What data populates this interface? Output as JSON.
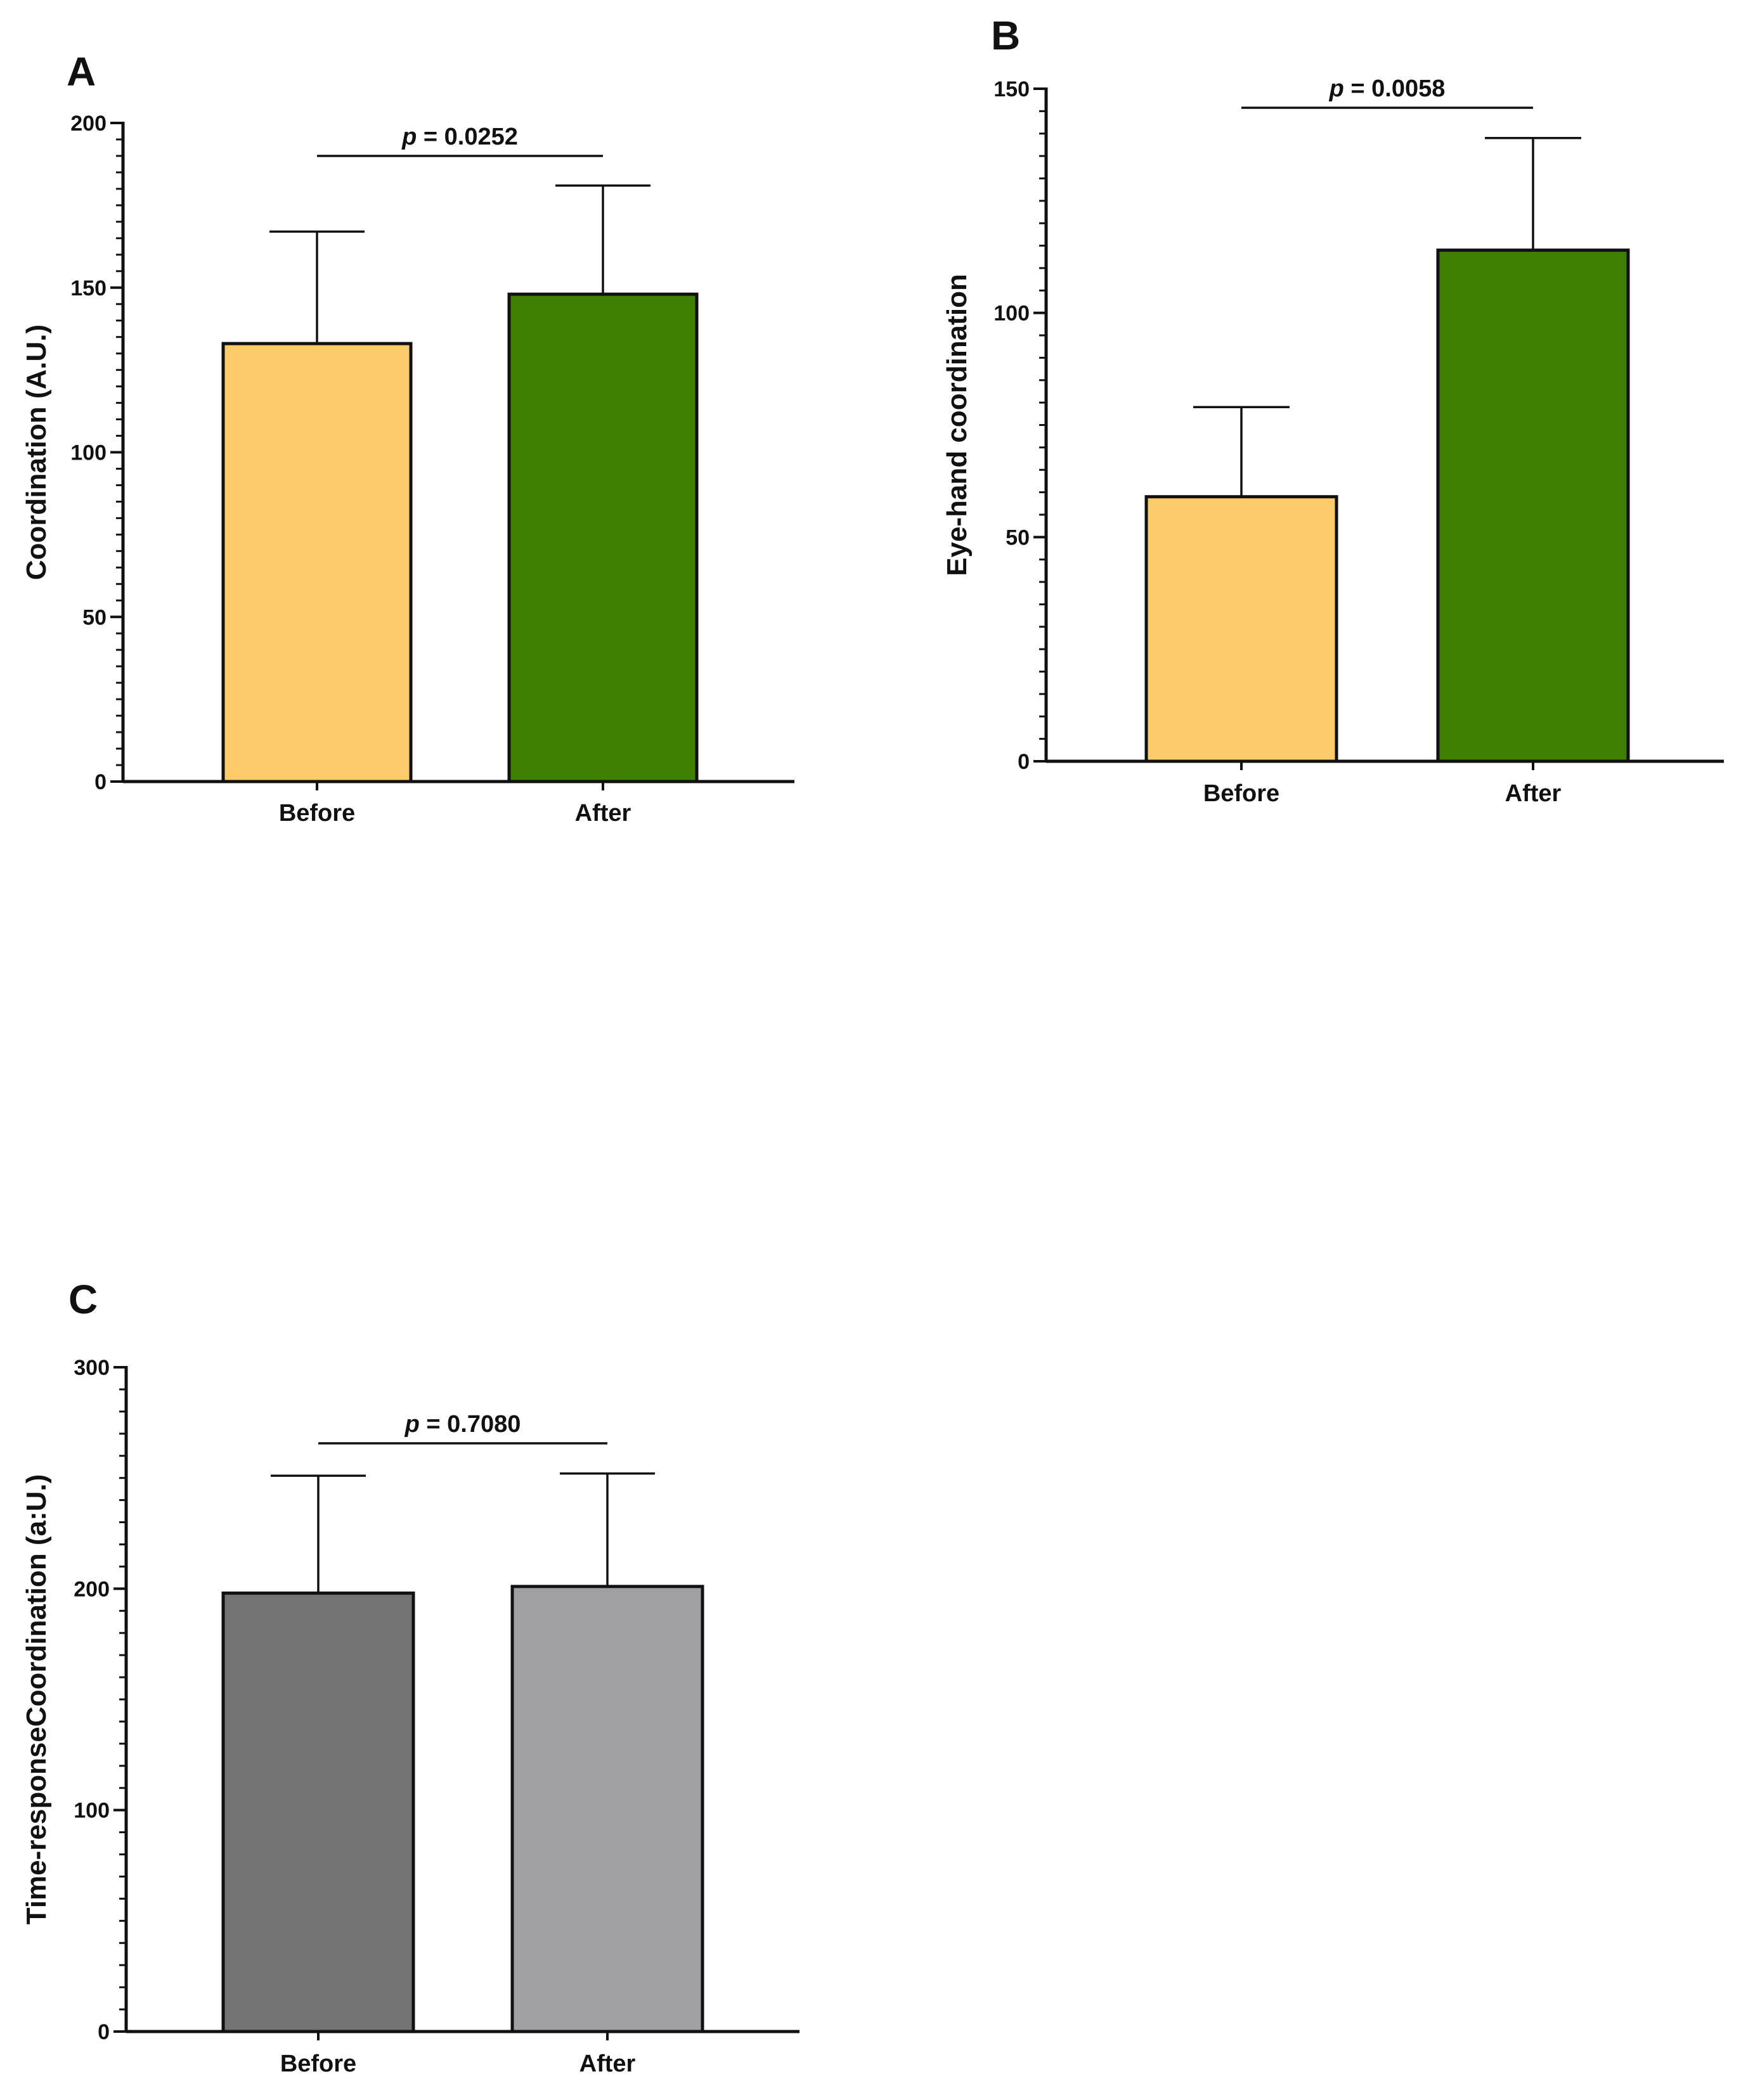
{
  "chart_data": [
    {
      "type": "bar",
      "panel": "A",
      "categories": [
        "Before",
        "After"
      ],
      "values": [
        133,
        148
      ],
      "errors": [
        34,
        33
      ],
      "colors": [
        "#FDCB6A",
        "#3F7F02"
      ],
      "ylabel": "Coordination (A.U.)",
      "ylim": [
        0,
        200
      ],
      "yticks": [
        0,
        50,
        100,
        150,
        200
      ],
      "significance": "p = 0.0252",
      "grid": false
    },
    {
      "type": "bar",
      "panel": "B",
      "categories": [
        "Before",
        "After"
      ],
      "values": [
        59,
        114
      ],
      "errors": [
        20,
        25
      ],
      "colors": [
        "#FDCB6A",
        "#3F7F02"
      ],
      "ylabel": "Eye-hand coordination",
      "ylim": [
        0,
        150
      ],
      "yticks": [
        0,
        50,
        100,
        150
      ],
      "significance": "p = 0.0058",
      "grid": false
    },
    {
      "type": "bar",
      "panel": "C",
      "categories": [
        "Before",
        "After"
      ],
      "values": [
        198,
        201
      ],
      "errors": [
        53,
        51
      ],
      "colors": [
        "#737373",
        "#A0A0A4"
      ],
      "ylabel": "Time-responseCoordination (a:U.)",
      "ylim": [
        0,
        300
      ],
      "yticks": [
        0,
        100,
        200,
        300
      ],
      "significance": "p = 0.7080",
      "grid": false
    }
  ]
}
